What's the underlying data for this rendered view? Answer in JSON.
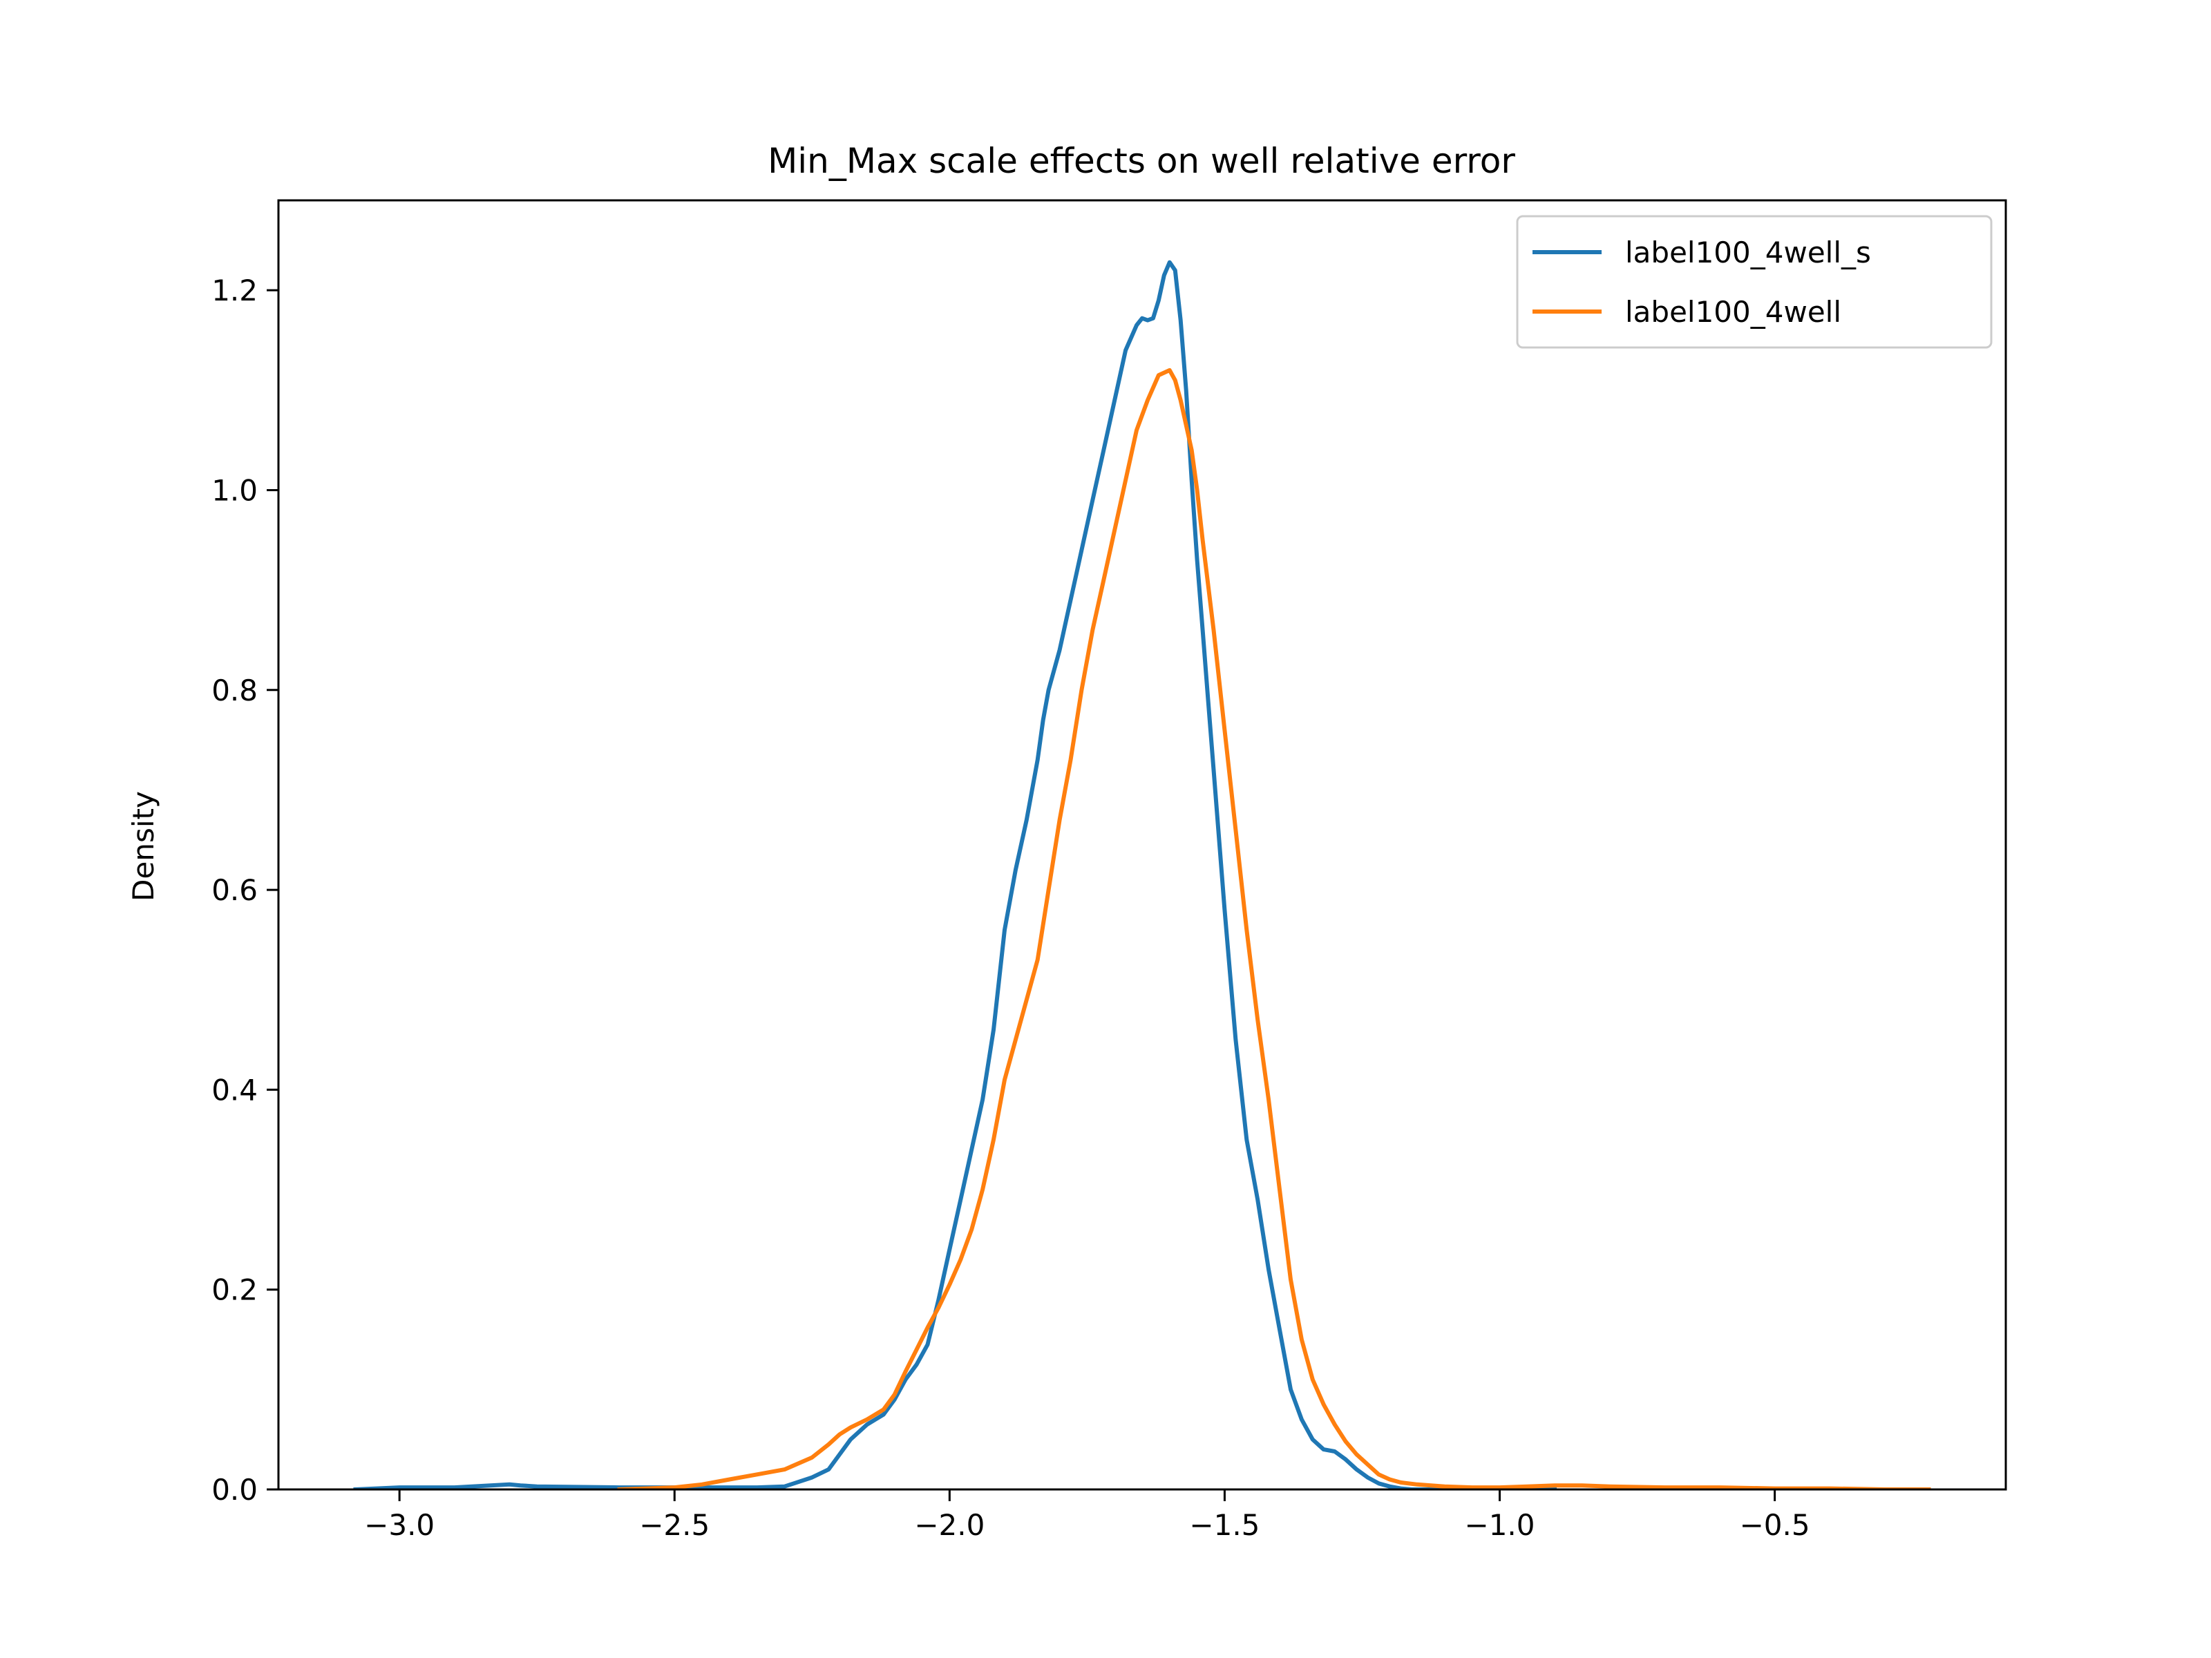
{
  "chart_data": {
    "type": "line",
    "title": "Min_Max scale effects on well relative error",
    "xlabel": "",
    "ylabel": "Density",
    "xlim": [
      -3.22,
      -0.08
    ],
    "ylim": [
      0.0,
      1.29
    ],
    "xticks": [
      -3.0,
      -2.5,
      -2.0,
      -1.5,
      -1.0,
      -0.5
    ],
    "xtick_labels": [
      "−3.0",
      "−2.5",
      "−2.0",
      "−1.5",
      "−1.0",
      "−0.5"
    ],
    "yticks": [
      0.0,
      0.2,
      0.4,
      0.6,
      0.8,
      1.0,
      1.2
    ],
    "ytick_labels": [
      "0.0",
      "0.2",
      "0.4",
      "0.6",
      "0.8",
      "1.0",
      "1.2"
    ],
    "grid": false,
    "legend_position": "top-right",
    "series": [
      {
        "name": "label100_4well_s",
        "color": "#1f77b4",
        "x": [
          -3.08,
          -3.0,
          -2.9,
          -2.8,
          -2.78,
          -2.75,
          -2.6,
          -2.5,
          -2.4,
          -2.35,
          -2.3,
          -2.25,
          -2.22,
          -2.2,
          -2.18,
          -2.15,
          -2.12,
          -2.1,
          -2.08,
          -2.06,
          -2.04,
          -2.02,
          -2.0,
          -1.98,
          -1.96,
          -1.94,
          -1.92,
          -1.9,
          -1.88,
          -1.86,
          -1.84,
          -1.83,
          -1.82,
          -1.81,
          -1.8,
          -1.79,
          -1.78,
          -1.77,
          -1.76,
          -1.74,
          -1.72,
          -1.7,
          -1.68,
          -1.66,
          -1.65,
          -1.64,
          -1.63,
          -1.62,
          -1.61,
          -1.6,
          -1.59,
          -1.58,
          -1.57,
          -1.56,
          -1.55,
          -1.54,
          -1.53,
          -1.52,
          -1.5,
          -1.48,
          -1.46,
          -1.44,
          -1.42,
          -1.4,
          -1.38,
          -1.36,
          -1.34,
          -1.32,
          -1.3,
          -1.28,
          -1.26,
          -1.24,
          -1.22,
          -1.2,
          -1.18,
          -1.16,
          -1.14,
          -1.12,
          -1.1,
          -1.05,
          -1.0,
          -0.9
        ],
        "y": [
          0.0,
          0.002,
          0.002,
          0.005,
          0.004,
          0.003,
          0.002,
          0.002,
          0.002,
          0.002,
          0.003,
          0.012,
          0.02,
          0.035,
          0.05,
          0.065,
          0.075,
          0.09,
          0.11,
          0.125,
          0.145,
          0.19,
          0.24,
          0.29,
          0.34,
          0.39,
          0.46,
          0.56,
          0.62,
          0.67,
          0.73,
          0.77,
          0.8,
          0.82,
          0.84,
          0.865,
          0.89,
          0.915,
          0.94,
          0.99,
          1.04,
          1.09,
          1.14,
          1.165,
          1.172,
          1.17,
          1.172,
          1.19,
          1.215,
          1.228,
          1.22,
          1.17,
          1.1,
          1.01,
          0.93,
          0.86,
          0.79,
          0.72,
          0.58,
          0.45,
          0.35,
          0.29,
          0.22,
          0.16,
          0.1,
          0.07,
          0.05,
          0.04,
          0.038,
          0.03,
          0.02,
          0.012,
          0.006,
          0.003,
          0.001,
          0.0,
          0.0,
          0.0,
          0.0,
          0.0,
          0.0,
          0.0
        ]
      },
      {
        "name": "label100_4well",
        "color": "#ff7f0e",
        "x": [
          -2.6,
          -2.5,
          -2.45,
          -2.4,
          -2.35,
          -2.3,
          -2.25,
          -2.22,
          -2.2,
          -2.18,
          -2.15,
          -2.12,
          -2.1,
          -2.08,
          -2.06,
          -2.04,
          -2.02,
          -2.0,
          -1.98,
          -1.96,
          -1.94,
          -1.92,
          -1.9,
          -1.88,
          -1.86,
          -1.84,
          -1.82,
          -1.8,
          -1.78,
          -1.76,
          -1.74,
          -1.72,
          -1.7,
          -1.68,
          -1.66,
          -1.64,
          -1.62,
          -1.6,
          -1.59,
          -1.58,
          -1.57,
          -1.56,
          -1.55,
          -1.54,
          -1.52,
          -1.5,
          -1.48,
          -1.46,
          -1.44,
          -1.42,
          -1.4,
          -1.38,
          -1.36,
          -1.34,
          -1.32,
          -1.3,
          -1.28,
          -1.26,
          -1.24,
          -1.22,
          -1.2,
          -1.18,
          -1.15,
          -1.1,
          -1.05,
          -1.0,
          -0.95,
          -0.9,
          -0.85,
          -0.8,
          -0.7,
          -0.6,
          -0.5,
          -0.4,
          -0.3,
          -0.22
        ],
        "y": [
          0.0,
          0.002,
          0.005,
          0.01,
          0.015,
          0.02,
          0.032,
          0.045,
          0.055,
          0.062,
          0.07,
          0.08,
          0.095,
          0.118,
          0.14,
          0.162,
          0.182,
          0.205,
          0.23,
          0.26,
          0.3,
          0.35,
          0.41,
          0.45,
          0.49,
          0.53,
          0.6,
          0.67,
          0.73,
          0.8,
          0.86,
          0.91,
          0.96,
          1.01,
          1.06,
          1.09,
          1.115,
          1.12,
          1.11,
          1.09,
          1.065,
          1.04,
          1.0,
          0.95,
          0.86,
          0.76,
          0.66,
          0.56,
          0.47,
          0.39,
          0.3,
          0.21,
          0.15,
          0.11,
          0.085,
          0.065,
          0.048,
          0.035,
          0.025,
          0.015,
          0.01,
          0.007,
          0.005,
          0.003,
          0.002,
          0.002,
          0.003,
          0.004,
          0.004,
          0.003,
          0.002,
          0.002,
          0.001,
          0.001,
          0.0,
          0.0
        ]
      }
    ]
  }
}
